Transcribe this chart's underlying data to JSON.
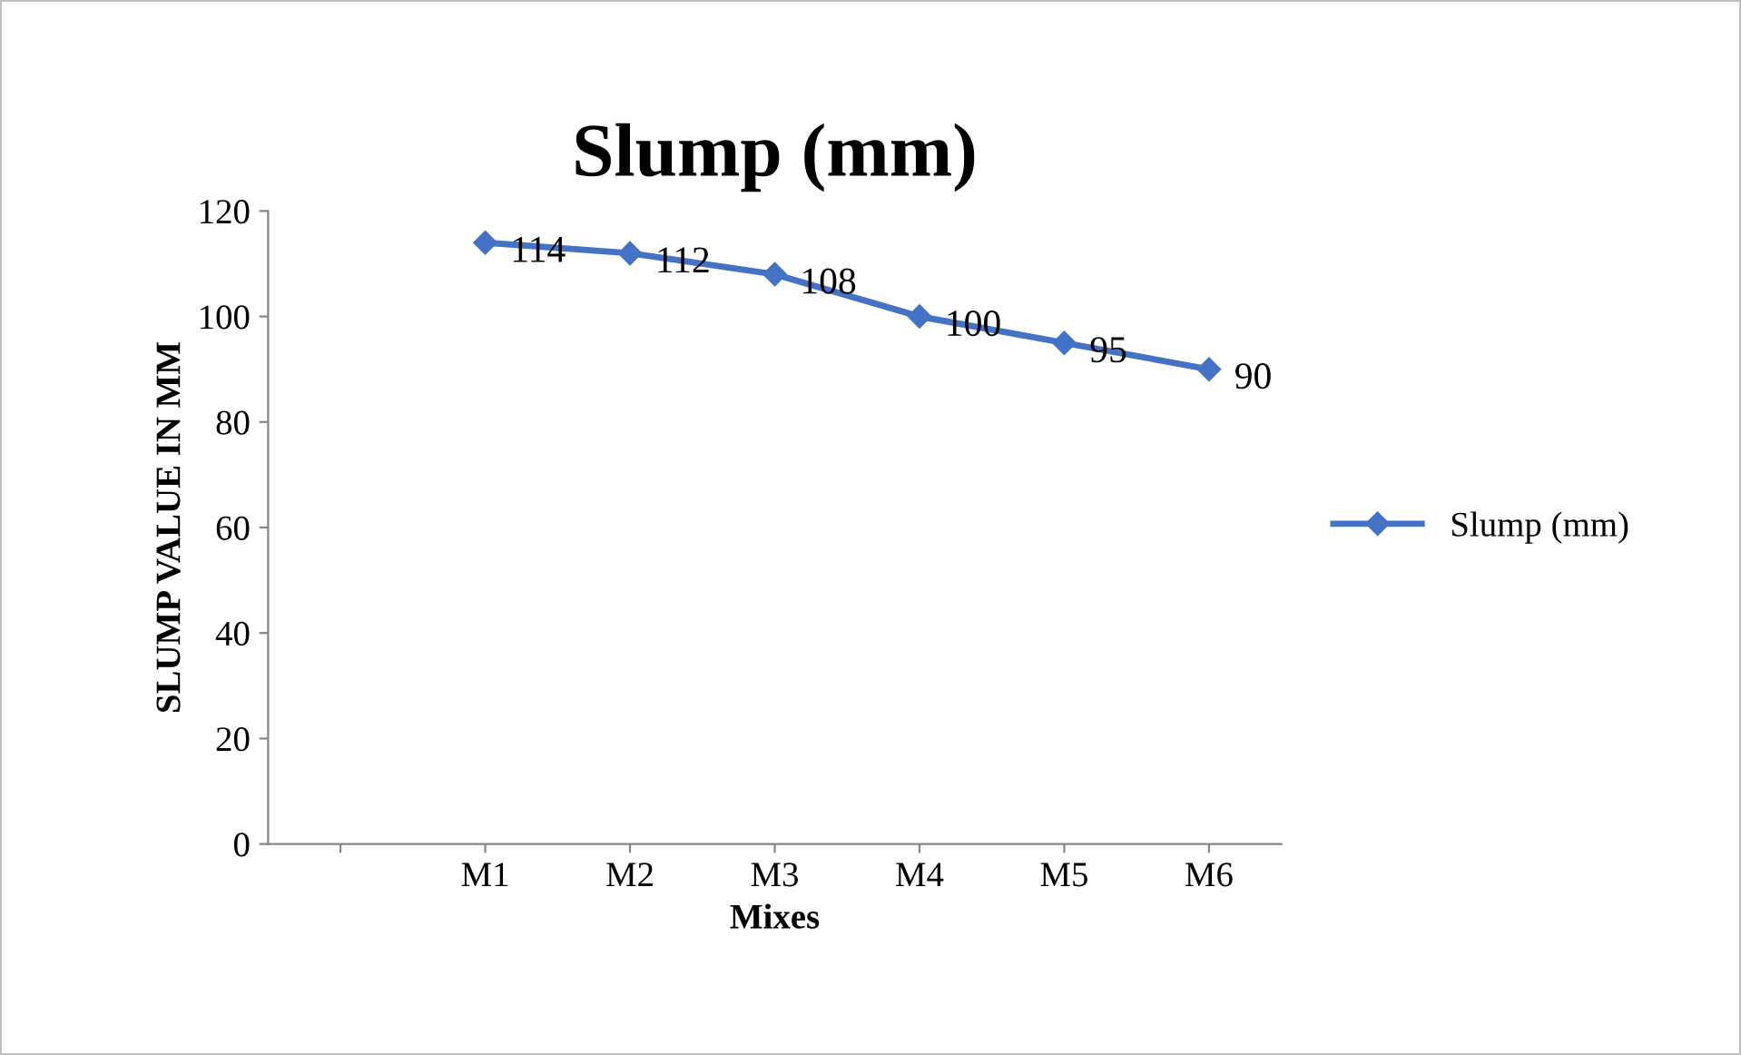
{
  "chart_data": {
    "type": "line",
    "title": "Slump (mm)",
    "xlabel": "Mixes",
    "ylabel": "SLUMP VALUE IN MM",
    "categories": [
      null,
      "M1",
      "M2",
      "M3",
      "M4",
      "M5",
      "M6"
    ],
    "series": [
      {
        "name": "Slump (mm)",
        "color": "#4472c4",
        "values": [
          null,
          114,
          112,
          108,
          100,
          95,
          90
        ]
      }
    ],
    "ylim": [
      0,
      120
    ],
    "yticks": [
      0,
      20,
      40,
      60,
      80,
      100,
      120
    ],
    "grid": false,
    "legend": "right",
    "marker": "diamond",
    "line_style": "solid",
    "data_labels": true
  }
}
